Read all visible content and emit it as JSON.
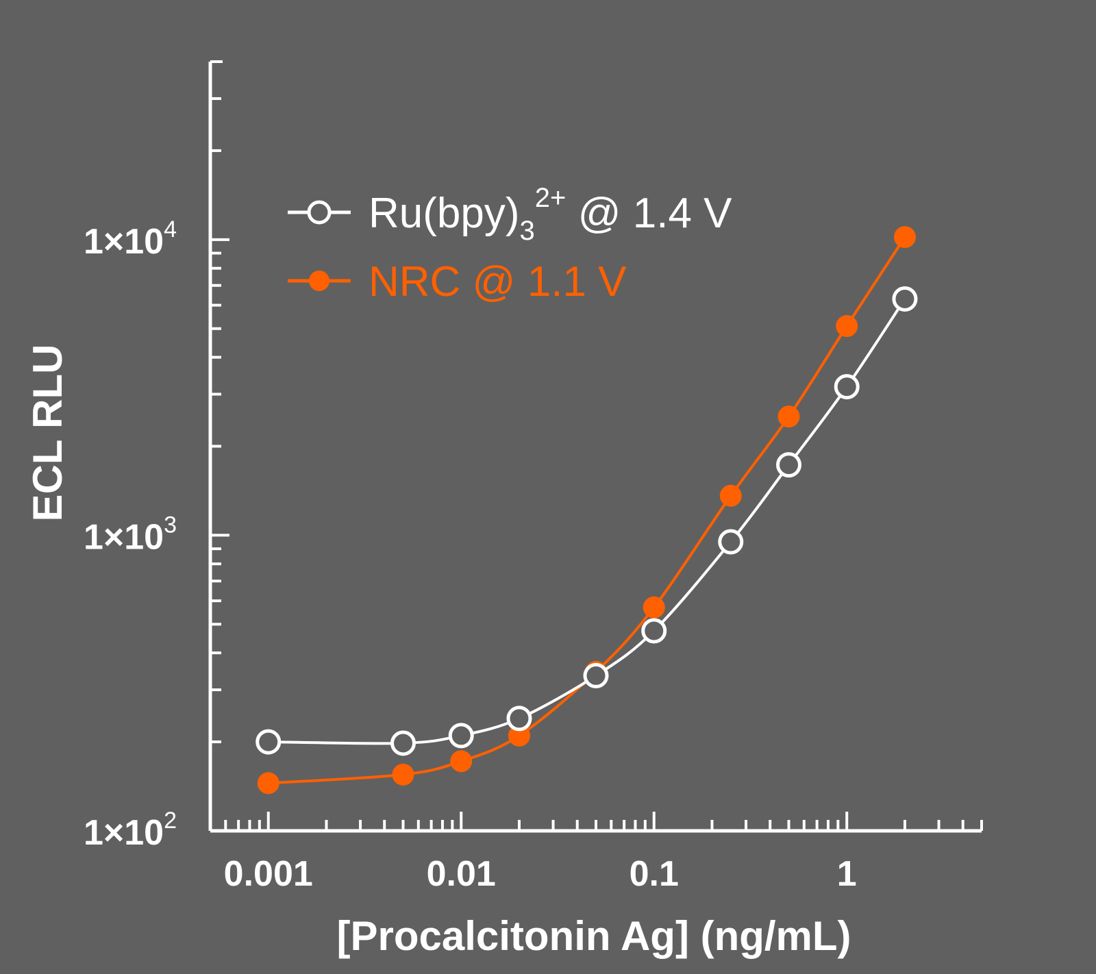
{
  "chart_data": {
    "type": "line",
    "xscale": "log",
    "yscale": "log",
    "xlabel": "[Procalcitonin Ag] (ng/mL)",
    "ylabel": "ECL RLU",
    "xlim": [
      0.0005,
      5
    ],
    "ylim": [
      100,
      40000
    ],
    "x_ticks": [
      {
        "value": 0.001,
        "label": "0.001"
      },
      {
        "value": 0.01,
        "label": "0.01"
      },
      {
        "value": 0.1,
        "label": "0.1"
      },
      {
        "value": 1,
        "label": "1"
      }
    ],
    "y_ticks": [
      {
        "value": 100,
        "mantissa": "1×10",
        "exponent": "2"
      },
      {
        "value": 1000,
        "mantissa": "1×10",
        "exponent": "3"
      },
      {
        "value": 10000,
        "mantissa": "1×10",
        "exponent": "4"
      }
    ],
    "series": [
      {
        "name": "Ru(bpy)3 2+ @ 1.4 V",
        "legend": {
          "base": "Ru(bpy)",
          "sub": "3",
          "sup": "2+",
          "rest": " @ 1.4 V"
        },
        "color": "#ffffff",
        "marker": "open-circle",
        "x": [
          0.001,
          0.005,
          0.01,
          0.02,
          0.05,
          0.1,
          0.25,
          0.5,
          1,
          2
        ],
        "y": [
          200,
          198,
          210,
          240,
          335,
          475,
          950,
          1730,
          3180,
          6300
        ]
      },
      {
        "name": "NRC @ 1.1 V",
        "legend": {
          "base": "NRC @ 1.1 V",
          "sub": "",
          "sup": "",
          "rest": ""
        },
        "color": "#ff6000",
        "marker": "filled-circle",
        "x": [
          0.001,
          0.005,
          0.01,
          0.02,
          0.05,
          0.1,
          0.25,
          0.5,
          1,
          2
        ],
        "y": [
          145,
          155,
          172,
          210,
          345,
          570,
          1360,
          2520,
          5100,
          10200
        ]
      }
    ]
  }
}
